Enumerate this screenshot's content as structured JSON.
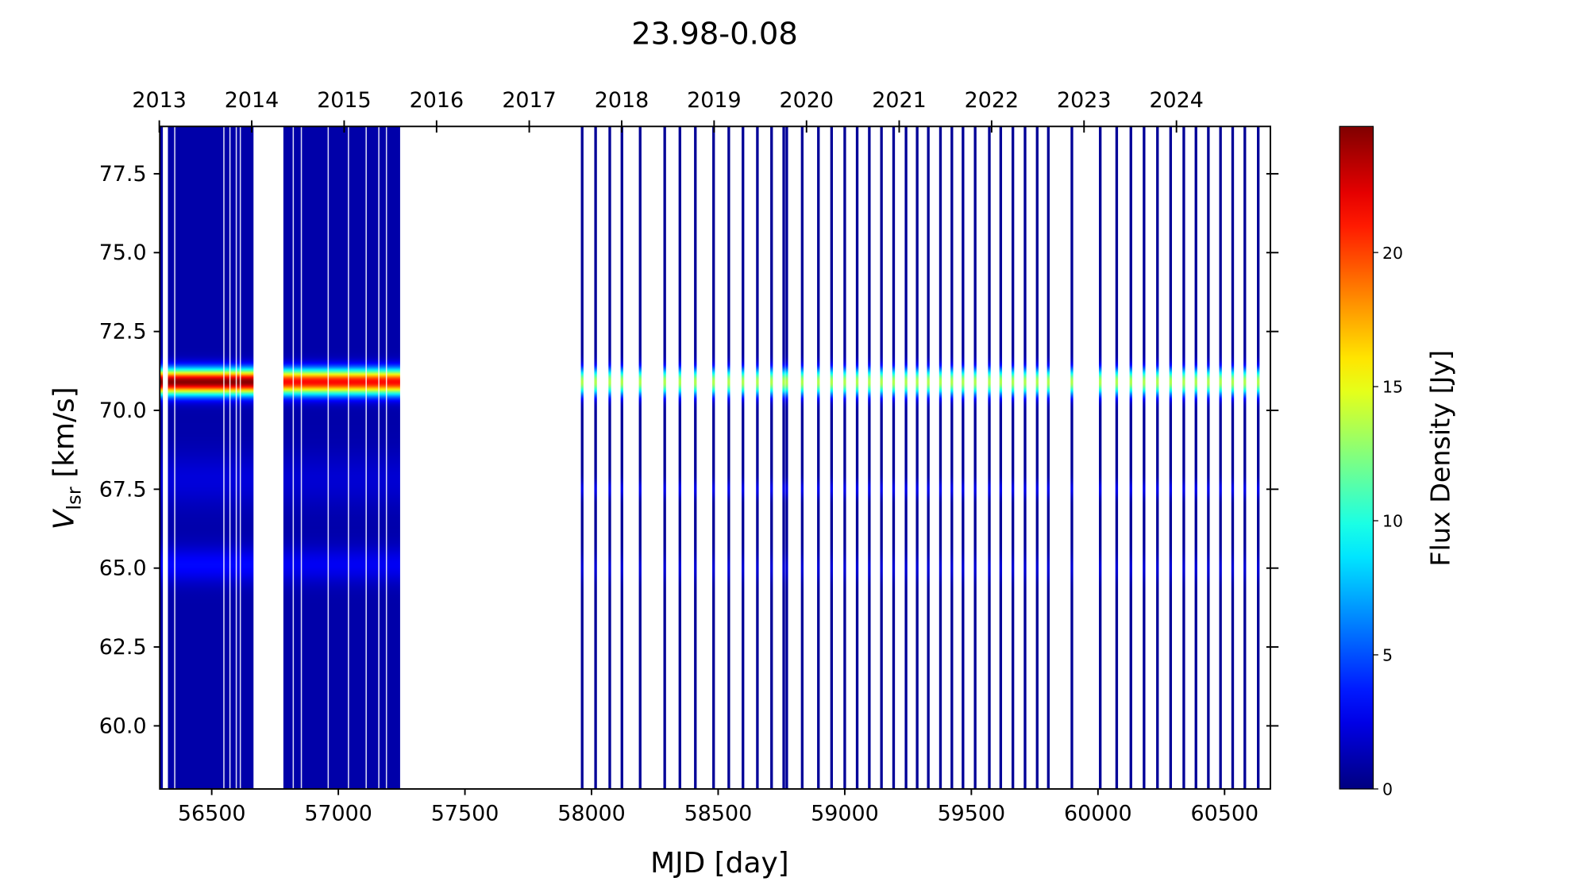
{
  "chart_data": {
    "type": "heatmap",
    "title": "23.98-0.08",
    "xlabel": "MJD [day]",
    "ylabel_main": "V",
    "ylabel_sub": "lsr",
    "ylabel_unit": " [km/s]",
    "xlim": [
      56295,
      60681
    ],
    "ylim": [
      58.0,
      79.0
    ],
    "xticks": [
      56500,
      57000,
      57500,
      58000,
      58500,
      59000,
      59500,
      60000,
      60500
    ],
    "yticks": [
      60.0,
      62.5,
      65.0,
      67.5,
      70.0,
      72.5,
      75.0,
      77.5
    ],
    "top_axis": {
      "labels": [
        "2013",
        "2014",
        "2015",
        "2016",
        "2017",
        "2018",
        "2019",
        "2020",
        "2021",
        "2022",
        "2023",
        "2024"
      ],
      "mjd": [
        56293,
        56658,
        57023,
        57388,
        57754,
        58119,
        58484,
        58849,
        59215,
        59580,
        59945,
        60310
      ]
    },
    "colorbar": {
      "label": "Flux Density [Jy]",
      "colormap": "jet",
      "range": [
        0,
        24.7
      ],
      "ticks": [
        0,
        5,
        10,
        15,
        20
      ]
    },
    "dense_segments": [
      {
        "start": 56295,
        "end": 56307,
        "group": "2013"
      },
      {
        "start": 56327,
        "end": 56665,
        "group": "2013",
        "gaps": [
          56354,
          56548,
          56572,
          56597,
          56613
        ]
      },
      {
        "start": 56783,
        "end": 57244,
        "group": "2015",
        "gaps": [
          56822,
          56854,
          56960,
          57040,
          57110,
          57160,
          57190
        ]
      }
    ],
    "observations_mjd": [
      57963,
      58016,
      58072,
      58120,
      58192,
      58289,
      58349,
      58410,
      58482,
      58542,
      58598,
      58655,
      58711,
      58759,
      58771,
      58832,
      58896,
      58948,
      59000,
      59049,
      59097,
      59145,
      59193,
      59242,
      59286,
      59330,
      59378,
      59423,
      59467,
      59515,
      59571,
      59616,
      59664,
      59712,
      59760,
      59804,
      59897,
      60009,
      60074,
      60130,
      60182,
      60235,
      60287,
      60339,
      60387,
      60436,
      60484,
      60532,
      60580,
      60633
    ],
    "spectra": {
      "2013": {
        "baseline": 1.0,
        "features": [
          {
            "v": 70.9,
            "peak": 23.5,
            "width": 0.28
          },
          {
            "v": 67.8,
            "peak": 1.2,
            "width": 0.6
          },
          {
            "v": 65.1,
            "peak": 2.2,
            "width": 0.4
          }
        ]
      },
      "2015": {
        "baseline": 1.0,
        "features": [
          {
            "v": 70.9,
            "peak": 20.5,
            "width": 0.28
          },
          {
            "v": 67.8,
            "peak": 1.0,
            "width": 0.6
          },
          {
            "v": 65.1,
            "peak": 1.8,
            "width": 0.4
          }
        ]
      },
      "later": {
        "baseline": 0.6,
        "features": [
          {
            "v": 70.9,
            "peak": 13.0,
            "width": 0.3
          },
          {
            "v": 67.5,
            "peak": 2.0,
            "width": 0.2
          },
          {
            "v": 65.0,
            "peak": 1.5,
            "width": 0.3
          }
        ]
      }
    }
  }
}
